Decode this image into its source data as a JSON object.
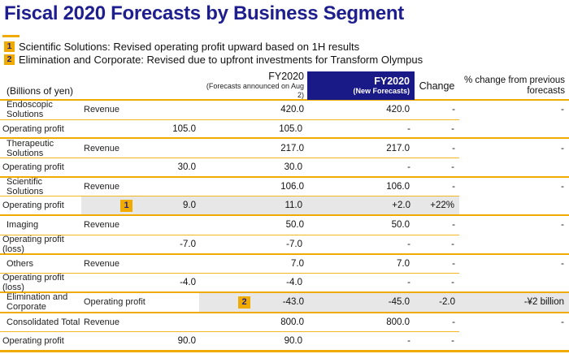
{
  "page": {
    "title": "Fiscal 2020 Forecasts by Business Segment",
    "notes": [
      {
        "badge": "1",
        "text": "Scientific Solutions: Revised operating profit upward based on 1H results"
      },
      {
        "badge": "2",
        "text": "Elimination and Corporate: Revised due to upfront investments for Transform Olympus"
      }
    ]
  },
  "colors": {
    "title_navy": "#1e1e8e",
    "header_box_navy": "#191987",
    "gold": "#f0ab00",
    "highlight_gray": "#e7e7e7"
  },
  "table": {
    "unit_label": "(Billions of yen)",
    "columns": {
      "prev": {
        "line1": "FY2020",
        "line2": "(Forecasts announced on Aug 2)"
      },
      "new": {
        "line1": "FY2020",
        "line2": "(New Forecasts)"
      },
      "change": "Change",
      "pct_change": "% change from previous forecasts"
    },
    "segments": [
      {
        "name": "Endoscopic Solutions",
        "rows": [
          {
            "metric": "Revenue",
            "prev": "420.0",
            "new": "420.0",
            "change": "-",
            "pct": "-"
          },
          {
            "metric": "Operating profit",
            "prev": "105.0",
            "new": "105.0",
            "change": "-",
            "pct": "-"
          }
        ]
      },
      {
        "name": "Therapeutic Solutions",
        "rows": [
          {
            "metric": "Revenue",
            "prev": "217.0",
            "new": "217.0",
            "change": "-",
            "pct": "-"
          },
          {
            "metric": "Operating profit",
            "prev": "30.0",
            "new": "30.0",
            "change": "-",
            "pct": "-"
          }
        ]
      },
      {
        "name": "Scientific Solutions",
        "rows": [
          {
            "metric": "Revenue",
            "prev": "106.0",
            "new": "106.0",
            "change": "-",
            "pct": "-"
          },
          {
            "metric": "Operating profit",
            "badge": "1",
            "prev": "9.0",
            "new": "11.0",
            "change": "+2.0",
            "pct": "+22%"
          }
        ]
      },
      {
        "name": "Imaging",
        "rows": [
          {
            "metric": "Revenue",
            "prev": "50.0",
            "new": "50.0",
            "change": "-",
            "pct": "-"
          },
          {
            "metric": "Operating profit (loss)",
            "prev": "-7.0",
            "new": "-7.0",
            "change": "-",
            "pct": "-"
          }
        ]
      },
      {
        "name": "Others",
        "rows": [
          {
            "metric": "Revenue",
            "prev": "7.0",
            "new": "7.0",
            "change": "-",
            "pct": "-"
          },
          {
            "metric": "Operating profit (loss)",
            "prev": "-4.0",
            "new": "-4.0",
            "change": "-",
            "pct": "-"
          }
        ]
      },
      {
        "name": "Elimination and Corporate",
        "rows": [
          {
            "metric": "Operating profit",
            "badge": "2",
            "prev": "-43.0",
            "new": "-45.0",
            "change": "-2.0",
            "pct": "-¥2 billion"
          }
        ]
      },
      {
        "name": "Consolidated Total",
        "rows": [
          {
            "metric": "Revenue",
            "prev": "800.0",
            "new": "800.0",
            "change": "-",
            "pct": "-"
          },
          {
            "metric": "Operating profit",
            "prev": "90.0",
            "new": "90.0",
            "change": "-",
            "pct": "-"
          }
        ]
      }
    ]
  }
}
